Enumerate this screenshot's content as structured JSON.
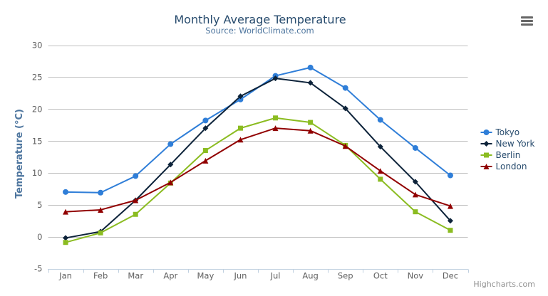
{
  "chart": {
    "credits_label": "Highcharts.com",
    "export_menu_icon": "hamburger-menu-icon"
  },
  "colors": {
    "background": "#ffffff",
    "title": "#274b6d",
    "subtitle": "#4d759e",
    "axis_label": "#606060",
    "axis_title": "#4d759e",
    "legend_text": "#274b6d",
    "grid_line": "#c0c0c0",
    "axis_line": "#c0d0e0",
    "tick": "#c0d0e0",
    "credits": "#909090",
    "menu_icon": "#666666"
  },
  "chart_data": {
    "type": "line",
    "title": "Monthly Average Temperature",
    "subtitle": "Source: WorldClimate.com",
    "categories": [
      "Jan",
      "Feb",
      "Mar",
      "Apr",
      "May",
      "Jun",
      "Jul",
      "Aug",
      "Sep",
      "Oct",
      "Nov",
      "Dec"
    ],
    "xlabel": "",
    "ylabel": "Temperature (°C)",
    "ylim": [
      -5,
      30
    ],
    "ytick_interval": 5,
    "grid": true,
    "legend_position": "right-middle",
    "series": [
      {
        "name": "Tokyo",
        "color": "#2f7ed8",
        "marker": "circle",
        "values": [
          7.0,
          6.9,
          9.5,
          14.5,
          18.2,
          21.5,
          25.2,
          26.5,
          23.3,
          18.3,
          13.9,
          9.6
        ]
      },
      {
        "name": "New York",
        "color": "#0d233a",
        "marker": "diamond",
        "values": [
          -0.2,
          0.8,
          5.7,
          11.3,
          17.0,
          22.0,
          24.8,
          24.1,
          20.1,
          14.1,
          8.6,
          2.5
        ]
      },
      {
        "name": "Berlin",
        "color": "#8bbc21",
        "marker": "square",
        "values": [
          -0.9,
          0.6,
          3.5,
          8.4,
          13.5,
          17.0,
          18.6,
          17.9,
          14.3,
          9.0,
          3.9,
          1.0
        ]
      },
      {
        "name": "London",
        "color": "#910000",
        "marker": "triangle",
        "values": [
          3.9,
          4.2,
          5.7,
          8.5,
          11.9,
          15.2,
          17.0,
          16.6,
          14.2,
          10.3,
          6.6,
          4.8
        ]
      }
    ]
  }
}
